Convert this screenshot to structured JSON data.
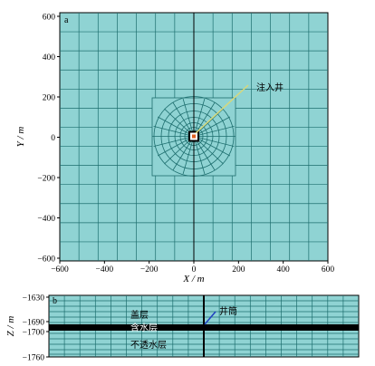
{
  "panel_a": {
    "label": "a",
    "annotation": "注入井",
    "x_axis_label": "X / m",
    "y_axis_label": "Y / m",
    "x_ticks": [
      "−600",
      "−400",
      "−200",
      "0",
      "200",
      "400",
      "600"
    ],
    "y_ticks": [
      "600",
      "400",
      "200",
      "0",
      "−200",
      "−400",
      "−600"
    ]
  },
  "panel_b": {
    "label": "b",
    "y_axis_label": "Z / m",
    "y_ticks": [
      "−1630",
      "−1690",
      "−1700",
      "−1760"
    ],
    "wellbore_label": "井筒",
    "caprock_label": "盖层",
    "aquifer_label": "含水层",
    "bottom_label": "不透水层"
  },
  "colors": {
    "mesh_fill": "#8fd3d3",
    "grid_line": "#1d6e6e",
    "annotation_line": "#d8d87a",
    "wellbore_line": "#2040c0",
    "aquifer_layer": "#000000"
  }
}
